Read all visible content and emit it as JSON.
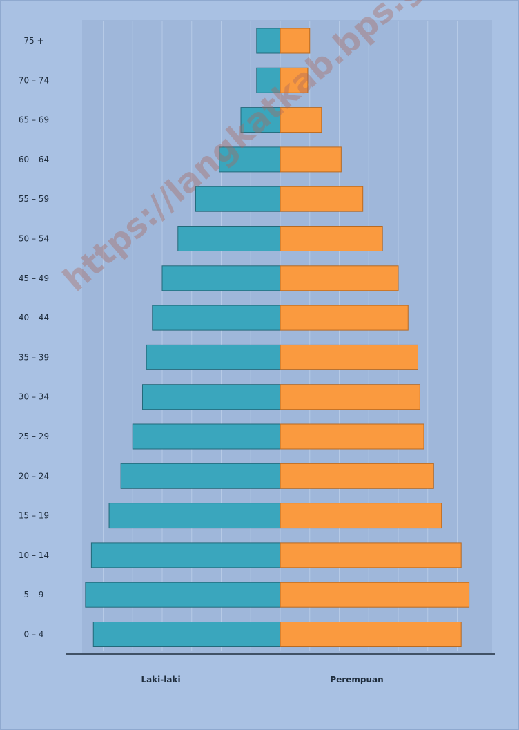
{
  "watermark": "https://langkatkab.bps.go.id",
  "colors": {
    "background": "#a9c1e3",
    "plot_area": "#9fb7da",
    "male": "#3aa6bd",
    "female": "#fa9a3f"
  },
  "chart_data": {
    "type": "bar",
    "orientation": "horizontal-population-pyramid",
    "categories": [
      "75 +",
      "70 – 74",
      "65 – 69",
      "60 – 64",
      "55 – 59",
      "50 – 54",
      "45 – 49",
      "40 – 44",
      "35 – 39",
      "30 – 34",
      "25 – 29",
      "20 – 24",
      "15 – 19",
      "10 – 14",
      "5 – 9",
      "0 – 4"
    ],
    "series": [
      {
        "name": "Laki-laki",
        "side": "left",
        "values": [
          1.2,
          1.2,
          2.0,
          3.1,
          4.3,
          5.2,
          6.0,
          6.5,
          6.8,
          7.0,
          7.5,
          8.1,
          8.7,
          9.6,
          9.9,
          9.5
        ]
      },
      {
        "name": "Perempuan",
        "side": "right",
        "values": [
          1.5,
          1.4,
          2.1,
          3.1,
          4.2,
          5.2,
          6.0,
          6.5,
          7.0,
          7.1,
          7.3,
          7.8,
          8.2,
          9.2,
          9.6,
          9.2
        ]
      }
    ],
    "xlim": [
      -10,
      10
    ],
    "title": "",
    "xlabel": "",
    "ylabel": "",
    "grid": true,
    "legend": "none"
  }
}
